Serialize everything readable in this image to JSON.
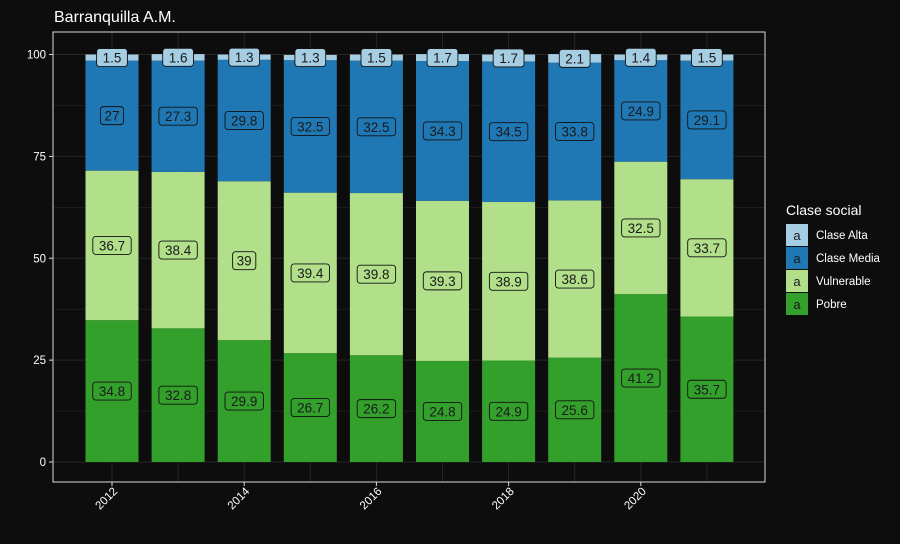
{
  "chart_data": {
    "type": "bar",
    "stacked": true,
    "title": "Barranquilla A.M.",
    "xlabel": "",
    "ylabel": "",
    "categories": [
      2012,
      2013,
      2014,
      2015,
      2016,
      2017,
      2018,
      2019,
      2020,
      2021
    ],
    "x_tick_labels": [
      "2012",
      "2014",
      "2016",
      "2018",
      "2020"
    ],
    "x_tick_values": [
      2012,
      2014,
      2016,
      2018,
      2020
    ],
    "ylim": [
      0,
      100
    ],
    "y_ticks": [
      0,
      25,
      50,
      75,
      100
    ],
    "grid": true,
    "legend_position": "right",
    "legend_title": "Clase social",
    "legend_key_text": "a",
    "series": [
      {
        "name": "Pobre",
        "color": "#33a02c",
        "values": [
          34.8,
          32.8,
          29.9,
          26.7,
          26.2,
          24.8,
          24.9,
          25.6,
          41.2,
          35.7
        ]
      },
      {
        "name": "Vulnerable",
        "color": "#b2df8a",
        "values": [
          36.7,
          38.4,
          39.0,
          39.4,
          39.8,
          39.3,
          38.9,
          38.6,
          32.5,
          33.7
        ]
      },
      {
        "name": "Clase Media",
        "color": "#1f78b4",
        "values": [
          27.0,
          27.3,
          29.8,
          32.5,
          32.5,
          34.3,
          34.5,
          33.8,
          24.9,
          29.1
        ]
      },
      {
        "name": "Clase Alta",
        "color": "#a6cee3",
        "values": [
          1.5,
          1.6,
          1.3,
          1.3,
          1.5,
          1.7,
          1.7,
          2.1,
          1.4,
          1.5
        ]
      }
    ],
    "data_labels": [
      {
        "series": "Pobre",
        "labels": [
          "34.8",
          "32.8",
          "29.9",
          "26.7",
          "26.2",
          "24.8",
          "24.9",
          "25.6",
          "41.2",
          "35.7"
        ]
      },
      {
        "series": "Vulnerable",
        "labels": [
          "36.7",
          "38.4",
          "39",
          "39.4",
          "39.8",
          "39.3",
          "38.9",
          "38.6",
          "32.5",
          "33.7"
        ]
      },
      {
        "series": "Clase Media",
        "labels": [
          "27",
          "27.3",
          "29.8",
          "32.5",
          "32.5",
          "34.3",
          "34.5",
          "33.8",
          "24.9",
          "29.1"
        ]
      },
      {
        "series": "Clase Alta",
        "labels": [
          "1.5",
          "1.6",
          "1.3",
          "1.3",
          "1.5",
          "1.7",
          "1.7",
          "2.1",
          "1.4",
          "1.5"
        ]
      }
    ],
    "legend_order": [
      "Clase Alta",
      "Clase Media",
      "Vulnerable",
      "Pobre"
    ],
    "colors": {
      "background": "#0d0d0d",
      "panel_border": "#d9d9d9",
      "gridline": "#262626",
      "text": "#ffffff",
      "label_text": "#1a1a1a"
    }
  }
}
